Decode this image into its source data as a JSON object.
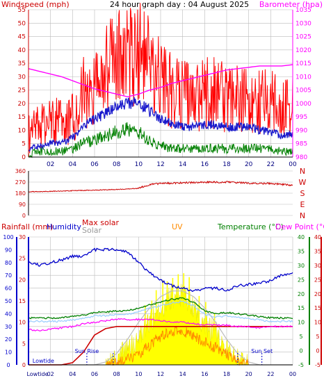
{
  "header": {
    "title": "24 hour graph day : 04 August 2025"
  },
  "colors": {
    "wind_gust": "#ff0000",
    "wind_avg": "#1a1acc",
    "wind_low": "#008000",
    "barometer": "#ff00ff",
    "direction": "#cc0000",
    "humidity": "#0000cc",
    "max_solar": "#bbbbbb",
    "solar": "#ffff00",
    "uv": "#ff8c00",
    "temperature": "#008000",
    "temperature_light": "#99ccff",
    "dew_point": "#ff00ff",
    "rain": "#cc0000",
    "rain_axis": "#0000cc",
    "tide": "#0000cc",
    "frame": "#000000",
    "grid": "#bbbbbb"
  },
  "chart_data": [
    {
      "type": "line",
      "title": "24 hour graph day : 04 August 2025",
      "ylabel": "Windspeed (mph)",
      "y2label": "Barometer (hpa)",
      "x_ticks": [
        "02",
        "04",
        "06",
        "08",
        "10",
        "12",
        "14",
        "16",
        "18",
        "20",
        "22",
        "00"
      ],
      "ylim": [
        0,
        55
      ],
      "y_ticks": [
        0,
        5,
        10,
        15,
        20,
        25,
        30,
        35,
        40,
        45,
        50,
        55
      ],
      "y2lim": [
        980,
        1035
      ],
      "y2_ticks": [
        980,
        985,
        990,
        995,
        1000,
        1005,
        1010,
        1015,
        1020,
        1025,
        1030,
        1035
      ],
      "x": [
        0,
        1,
        2,
        3,
        4,
        5,
        6,
        7,
        8,
        9,
        10,
        11,
        12,
        13,
        14,
        15,
        16,
        17,
        18,
        19,
        20,
        21,
        22,
        23,
        24
      ],
      "series": [
        {
          "key": "gust",
          "axis": "left",
          "values": [
            8,
            10,
            12,
            12,
            14,
            22,
            27,
            30,
            34,
            36,
            38,
            32,
            26,
            24,
            22,
            21,
            22,
            22,
            21,
            20,
            20,
            19,
            19,
            17,
            17
          ]
        },
        {
          "key": "avg",
          "axis": "left",
          "values": [
            3,
            4,
            5,
            5,
            7,
            11,
            14,
            16,
            19,
            20,
            20,
            17,
            14,
            12,
            11,
            11,
            12,
            12,
            11,
            11,
            11,
            10,
            9,
            8,
            8
          ]
        },
        {
          "key": "low",
          "axis": "left",
          "values": [
            1,
            2,
            2,
            2,
            3,
            5,
            6,
            8,
            9,
            10,
            9,
            6,
            4,
            3,
            3,
            3,
            3,
            3,
            3,
            3,
            3,
            3,
            3,
            2,
            2
          ]
        },
        {
          "key": "barometer",
          "axis": "right",
          "values": [
            1013,
            1012,
            1011,
            1010,
            1008.5,
            1007,
            1005.5,
            1004.5,
            1003.5,
            1002.5,
            1003.5,
            1005,
            1006,
            1007.5,
            1008.5,
            1009.5,
            1010.5,
            1011.5,
            1012.5,
            1013,
            1013.5,
            1014,
            1014,
            1014,
            1014.5
          ]
        }
      ]
    },
    {
      "type": "line",
      "ylim": [
        0,
        360
      ],
      "y_ticks": [
        0,
        90,
        180,
        270,
        360
      ],
      "right_labels": [
        "N",
        "W",
        "S",
        "E",
        "N"
      ],
      "x": [
        0,
        2,
        4,
        6,
        8,
        9,
        10,
        11,
        12,
        13,
        14,
        16,
        18,
        20,
        22,
        24
      ],
      "series": [
        {
          "key": "direction",
          "values": [
            192,
            195,
            200,
            205,
            210,
            214,
            220,
            250,
            258,
            262,
            265,
            268,
            270,
            262,
            258,
            245
          ]
        }
      ]
    },
    {
      "type": "line",
      "legend": [
        "Rainfall (mm)",
        "Humidity",
        "Max solar",
        "Solar",
        "UV",
        "Temperature (°C)",
        "Dew Point (°C)"
      ],
      "x_ticks": [
        "Lowtide",
        "02",
        "04",
        "06",
        "08",
        "10",
        "12",
        "14",
        "16",
        "18",
        "20",
        "22",
        "00"
      ],
      "humidity_ylim": [
        0,
        100
      ],
      "humidity_ticks": [
        0,
        10,
        20,
        30,
        40,
        50,
        60,
        70,
        80,
        90,
        100
      ],
      "rain_ylim": [
        0,
        30
      ],
      "rain_ticks": [
        0,
        5,
        10,
        15,
        20,
        25,
        30
      ],
      "temp_ylim": [
        -5,
        40
      ],
      "temp_ticks": [
        -5,
        0,
        5,
        10,
        15,
        20,
        25,
        30,
        35,
        40
      ],
      "annotations": [
        "Lowtide",
        "Sun Rise",
        "Sun Set"
      ],
      "x": [
        0,
        1,
        2,
        3,
        4,
        5,
        6,
        7,
        8,
        9,
        10,
        11,
        12,
        13,
        14,
        15,
        16,
        17,
        18,
        19,
        20,
        21,
        22,
        23,
        24
      ],
      "series": [
        {
          "key": "humidity",
          "axis": "humidity",
          "values": [
            80,
            78,
            80,
            82,
            85,
            85,
            90,
            90,
            90,
            88,
            80,
            72,
            66,
            62,
            60,
            58,
            60,
            60,
            58,
            62,
            63,
            64,
            66,
            70,
            72
          ]
        },
        {
          "key": "temperature",
          "axis": "temp",
          "values": [
            11.5,
            11.5,
            11.5,
            11.5,
            12,
            12.5,
            13.5,
            13.5,
            14,
            14,
            15,
            16,
            17,
            18,
            18.5,
            17,
            14,
            13,
            13.5,
            13,
            12.5,
            12,
            11.5,
            11.5,
            11.5
          ]
        },
        {
          "key": "dew_point",
          "axis": "temp",
          "values": [
            7.5,
            7,
            7.5,
            8,
            8.5,
            9.5,
            10,
            10.5,
            11,
            11,
            11,
            11,
            10.5,
            10,
            10,
            9.5,
            9,
            9,
            9,
            8.5,
            8.5,
            8,
            8.5,
            8.5,
            8.5
          ]
        },
        {
          "key": "rain",
          "axis": "rain",
          "values": [
            0,
            0,
            0,
            0,
            0.5,
            3,
            7,
            8.5,
            9,
            9,
            9,
            9,
            9,
            9,
            9,
            9,
            9,
            9,
            9,
            9,
            9,
            9,
            9,
            9,
            9
          ]
        },
        {
          "key": "max_solar",
          "axis": "temp",
          "values": [
            -5,
            -5,
            -5,
            -5,
            -5,
            -5,
            -5,
            -4,
            -1,
            4,
            10,
            15,
            19,
            21,
            21,
            19,
            15,
            10,
            4,
            -1,
            -4,
            -5,
            -5,
            -5,
            -5
          ]
        },
        {
          "key": "solar",
          "axis": "temp",
          "values": [
            -5,
            -5,
            -5,
            -5,
            -5,
            -5,
            -5,
            -5,
            -3,
            0,
            4,
            10,
            15,
            19,
            20,
            15,
            9,
            6,
            0,
            -3,
            -5,
            -5,
            -5,
            -5,
            -5
          ]
        },
        {
          "key": "uv",
          "axis": "temp",
          "values": [
            -5,
            -5,
            -5,
            -5,
            -5,
            -5,
            -5,
            -5,
            -4.5,
            -3,
            -1,
            2,
            5,
            7,
            7,
            5,
            3,
            1,
            -1.5,
            -3.5,
            -5,
            -5,
            -5,
            -5,
            -5
          ]
        }
      ],
      "solar_spike_hours": [
        10.6,
        11.2,
        11.6,
        12.2,
        12.6,
        13.1,
        13.6,
        14.1,
        14.6,
        15.5,
        16.1,
        16.9
      ]
    }
  ],
  "labels": {
    "windspeed": "Windspeed (mph)",
    "barometer": "Barometer (hpa)",
    "rainfall": "Rainfall (mm)",
    "humidity": "Humidity",
    "max_solar": "Max solar",
    "solar": "Solar",
    "uv": "UV",
    "temperature": "Temperature (°C)",
    "dew_point": "Dew Point (°C)",
    "lowtide": "Lowtide",
    "sun_rise": "Sun Rise",
    "sun_set": "Sun Set"
  }
}
